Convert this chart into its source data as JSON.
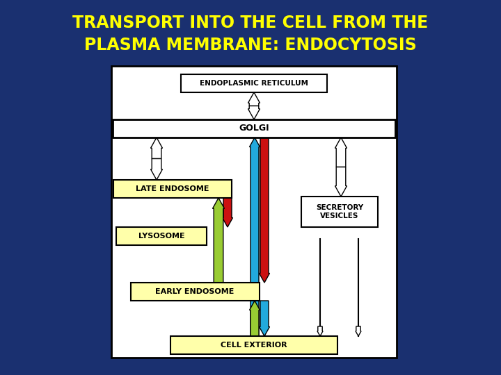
{
  "title_line1": "TRANSPORT INTO THE CELL FROM THE",
  "title_line2": "PLASMA MEMBRANE: ENDOCYTOSIS",
  "title_color": "#FFFF00",
  "bg_color": "#1a3070",
  "box_fill_white": "#ffffff",
  "box_fill_yellow": "#FFFFAA",
  "box_border": "#000000",
  "arrow_white": "#ffffff",
  "arrow_red": "#cc1111",
  "arrow_green": "#99cc33",
  "arrow_blue": "#22aadd",
  "labels": {
    "ER": "ENDOPLASMIC RETICULUM",
    "GOLGI": "GOLGI",
    "LATE_ENDOSOME": "LATE ENDOSOME",
    "LYSOSOME": "LYSOSOME",
    "EARLY_ENDOSOME": "EARLY ENDOSOME",
    "CELL_EXTERIOR": "CELL EXTERIOR",
    "SECRETORY": "SECRETORY\nVESICLES"
  },
  "figsize": [
    7.2,
    5.4
  ],
  "dpi": 100
}
